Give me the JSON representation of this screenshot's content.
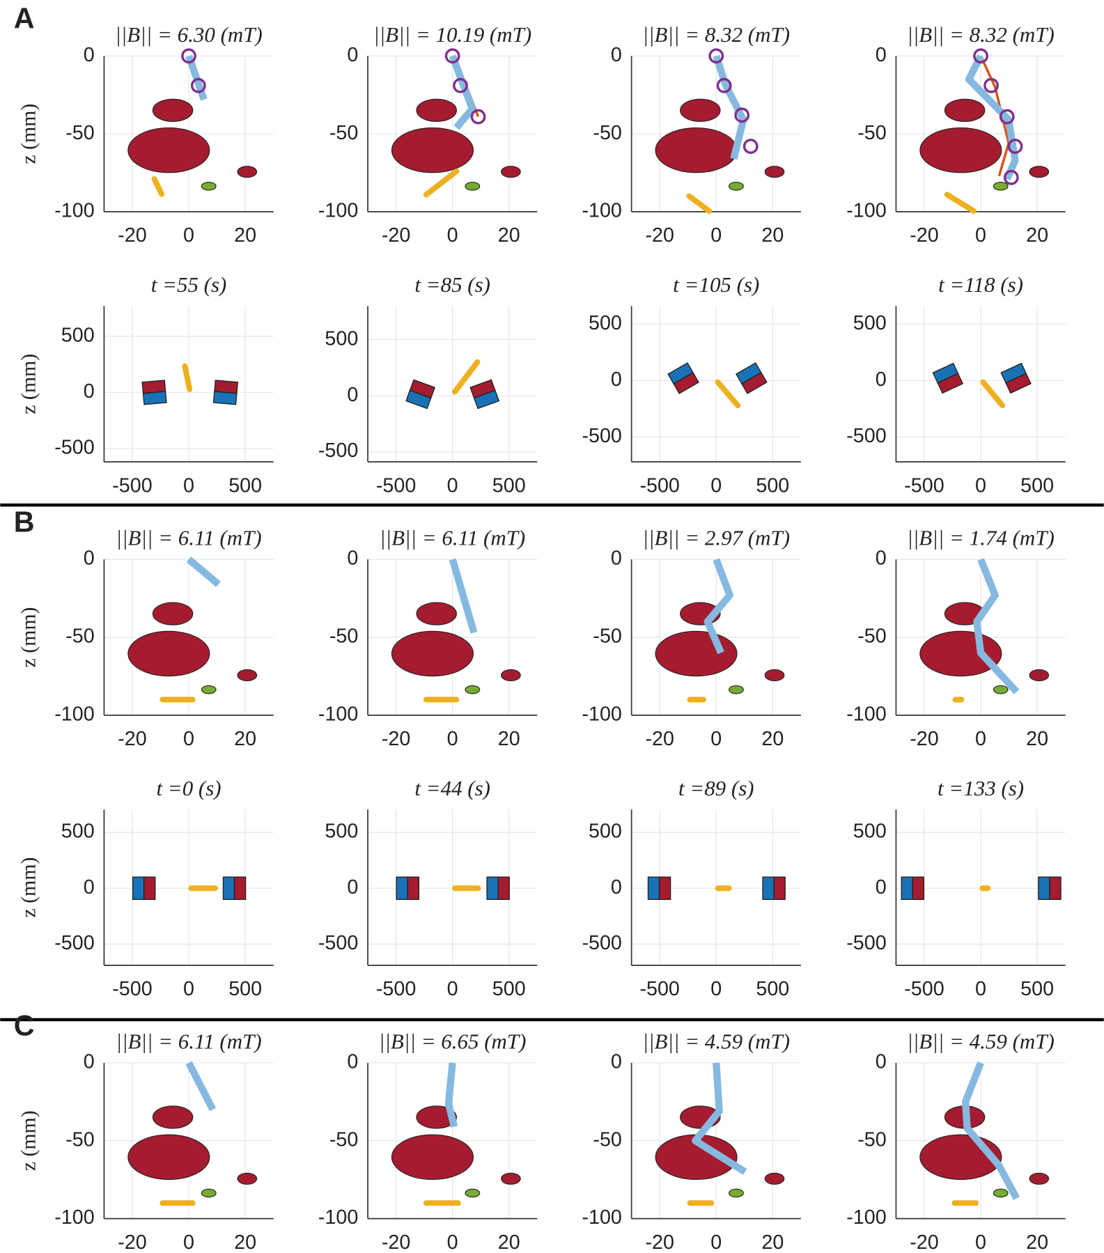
{
  "style": {
    "tentacle": "#86b9e0",
    "reference": "#d95319",
    "markers": "#7e2f8e",
    "rod": "#edb120",
    "north": "#a51c30",
    "south": "#1a72b6",
    "grid": "#e4e4e4"
  },
  "panels": [
    {
      "label": "A",
      "plots": [
        {
          "type": "body",
          "title": "||B|| = 6.30 (mT)",
          "ylabel": "z (mm)",
          "xlim": [
            -30,
            30
          ],
          "ylim": [
            -100,
            0
          ],
          "xticks": [
            -20,
            0,
            20
          ],
          "yticks": [
            -100,
            -50,
            0
          ],
          "tentacle": {
            "x": [
              0,
              5.4
            ],
            "z": [
              0,
              -28
            ]
          },
          "markers": {
            "x": [
              0,
              3.4
            ],
            "z": [
              0,
              -19
            ]
          },
          "rod": {
            "x": [
              -12.2,
              -9.6
            ],
            "z": [
              -79,
              -88.7
            ]
          }
        },
        {
          "type": "body",
          "title": "||B|| = 10.19 (mT)",
          "xlim": [
            -30,
            30
          ],
          "ylim": [
            -100,
            0
          ],
          "xticks": [
            -20,
            0,
            20
          ],
          "yticks": [
            -100,
            -50,
            0
          ],
          "reference": {
            "x": [
              0,
              4.2,
              9.1
            ],
            "z": [
              0,
              -16,
              -39
            ]
          },
          "tentacle": {
            "x": [
              0,
              7,
              1.4
            ],
            "z": [
              0,
              -34,
              -46
            ]
          },
          "markers": {
            "x": [
              0,
              2.8,
              9.1
            ],
            "z": [
              0,
              -19,
              -39
            ]
          },
          "rod": {
            "x": [
              -9.3,
              1.4
            ],
            "z": [
              -89,
              -74
            ]
          }
        },
        {
          "type": "body",
          "title": "||B|| = 8.32 (mT)",
          "xlim": [
            -30,
            30
          ],
          "ylim": [
            -100,
            0
          ],
          "xticks": [
            -20,
            0,
            20
          ],
          "yticks": [
            -100,
            -50,
            0
          ],
          "tentacle": {
            "x": [
              0,
              3.4,
              9.6,
              6.2
            ],
            "z": [
              0,
              -19,
              -41,
              -66
            ]
          },
          "markers": {
            "x": [
              0,
              2.8,
              9.1,
              12.2
            ],
            "z": [
              0,
              -19,
              -38,
              -58
            ]
          },
          "rod": {
            "x": [
              -9.6,
              -2.5
            ],
            "z": [
              -90,
              -99.5
            ]
          }
        },
        {
          "type": "body",
          "title": "||B|| = 8.32 (mT)",
          "xlim": [
            -30,
            30
          ],
          "ylim": [
            -100,
            0
          ],
          "xticks": [
            -20,
            0,
            20
          ],
          "yticks": [
            -100,
            -50,
            0
          ],
          "reference": {
            "x": [
              0,
              5.1,
              9.9,
              6.5
            ],
            "z": [
              0,
              -20,
              -56,
              -77
            ]
          },
          "tentacle": {
            "x": [
              0,
              -4.2,
              9.9,
              12.2,
              9.3
            ],
            "z": [
              0,
              -15,
              -41,
              -67,
              -79
            ]
          },
          "markers": {
            "x": [
              0,
              3.7,
              9.3,
              12.2,
              10.8
            ],
            "z": [
              0,
              -19,
              -39,
              -58,
              -78
            ]
          },
          "rod": {
            "x": [
              -11.9,
              -2.5
            ],
            "z": [
              -89,
              -99.5
            ]
          }
        },
        {
          "type": "magnets",
          "title": "t =55 (s)",
          "ylabel": "z (mm)",
          "xlim": [
            -750,
            750
          ],
          "ylim": [
            -620,
            770
          ],
          "xticks": [
            -500,
            0,
            500
          ],
          "yticks": [
            -500,
            0,
            500
          ],
          "magnets": [
            {
              "x": -305,
              "z": 0,
              "angle": 95
            },
            {
              "x": 326,
              "z": 0,
              "angle": 85
            }
          ],
          "rod": {
            "x": [
              -35,
              7
            ],
            "z": [
              234,
              28
            ]
          }
        },
        {
          "type": "magnets",
          "title": "t =85 (s)",
          "xlim": [
            -750,
            750
          ],
          "ylim": [
            -590,
            800
          ],
          "xticks": [
            -500,
            0,
            500
          ],
          "yticks": [
            -500,
            0,
            500
          ],
          "magnets": [
            {
              "x": -284,
              "z": 14,
              "angle": 70
            },
            {
              "x": 284,
              "z": 14,
              "angle": 110
            }
          ],
          "rod": {
            "x": [
              21,
              220
            ],
            "z": [
              36,
              300
            ]
          }
        },
        {
          "type": "magnets",
          "title": "t =105 (s)",
          "xlim": [
            -750,
            750
          ],
          "ylim": [
            -720,
            660
          ],
          "xticks": [
            -500,
            0,
            500
          ],
          "yticks": [
            -500,
            0,
            500
          ],
          "magnets": [
            {
              "x": -291,
              "z": 21,
              "angle": -60
            },
            {
              "x": 312,
              "z": 21,
              "angle": -60
            }
          ],
          "rod": {
            "x": [
              14,
              191
            ],
            "z": [
              -14,
              -220
            ]
          }
        },
        {
          "type": "magnets",
          "title": "t =118 (s)",
          "xlim": [
            -750,
            750
          ],
          "ylim": [
            -720,
            660
          ],
          "xticks": [
            -500,
            0,
            500
          ],
          "yticks": [
            -500,
            0,
            500
          ],
          "magnets": [
            {
              "x": -291,
              "z": 21,
              "angle": -65
            },
            {
              "x": 312,
              "z": 21,
              "angle": -65
            }
          ],
          "rod": {
            "x": [
              21,
              191
            ],
            "z": [
              -14,
              -220
            ]
          }
        }
      ]
    },
    {
      "label": "B",
      "plots": [
        {
          "type": "body",
          "title": "||B|| = 6.11 (mT)",
          "ylabel": "z (mm)",
          "xlim": [
            -30,
            30
          ],
          "ylim": [
            -100,
            0
          ],
          "xticks": [
            -20,
            0,
            20
          ],
          "yticks": [
            -100,
            -50,
            0
          ],
          "tentacle": {
            "x": [
              0,
              10.5
            ],
            "z": [
              0,
              -16
            ]
          },
          "rod": {
            "x": [
              -9.3,
              1.4
            ],
            "z": [
              -90,
              -90
            ]
          }
        },
        {
          "type": "body",
          "title": "||B|| = 6.11 (mT)",
          "xlim": [
            -30,
            30
          ],
          "ylim": [
            -100,
            0
          ],
          "xticks": [
            -20,
            0,
            20
          ],
          "yticks": [
            -100,
            -50,
            0
          ],
          "tentacle": {
            "x": [
              0,
              7.6
            ],
            "z": [
              0,
              -47
            ]
          },
          "rod": {
            "x": [
              -9.3,
              1.4
            ],
            "z": [
              -90,
              -90
            ]
          }
        },
        {
          "type": "body",
          "title": "||B|| = 2.97 (mT)",
          "xlim": [
            -30,
            30
          ],
          "ylim": [
            -100,
            0
          ],
          "xticks": [
            -20,
            0,
            20
          ],
          "yticks": [
            -100,
            -50,
            0
          ],
          "tentacle": {
            "x": [
              0,
              4.8,
              -3.1,
              1.7
            ],
            "z": [
              0,
              -23,
              -40,
              -60
            ]
          },
          "rod": {
            "x": [
              -9.3,
              -4.5
            ],
            "z": [
              -90,
              -90
            ]
          }
        },
        {
          "type": "body",
          "title": "||B|| = 1.74 (mT)",
          "xlim": [
            -30,
            30
          ],
          "ylim": [
            -100,
            0
          ],
          "xticks": [
            -20,
            0,
            20
          ],
          "yticks": [
            -100,
            -50,
            0
          ],
          "tentacle": {
            "x": [
              0,
              5.1,
              -1.4,
              0,
              12.7
            ],
            "z": [
              0,
              -23,
              -40,
              -60,
              -85
            ]
          },
          "rod": {
            "x": [
              -9,
              -6.8
            ],
            "z": [
              -90,
              -90
            ]
          }
        },
        {
          "type": "magnets",
          "title": "t =0 (s)",
          "ylabel": "z (mm)",
          "xlim": [
            -750,
            750
          ],
          "ylim": [
            -690,
            705
          ],
          "xticks": [
            -500,
            0,
            500
          ],
          "yticks": [
            -500,
            0,
            500
          ],
          "magnets": [
            {
              "x": -397,
              "z": 0,
              "angle": 0
            },
            {
              "x": 404,
              "z": 0,
              "angle": 0
            }
          ],
          "rod": {
            "x": [
              21,
              234
            ],
            "z": [
              0,
              0
            ]
          }
        },
        {
          "type": "magnets",
          "title": "t =44 (s)",
          "xlim": [
            -750,
            750
          ],
          "ylim": [
            -690,
            705
          ],
          "xticks": [
            -500,
            0,
            500
          ],
          "yticks": [
            -500,
            0,
            500
          ],
          "magnets": [
            {
              "x": -397,
              "z": 0,
              "angle": 0
            },
            {
              "x": 404,
              "z": 0,
              "angle": 0
            }
          ],
          "rod": {
            "x": [
              21,
              227
            ],
            "z": [
              0,
              0
            ]
          }
        },
        {
          "type": "magnets",
          "title": "t =89 (s)",
          "xlim": [
            -750,
            750
          ],
          "ylim": [
            -690,
            705
          ],
          "xticks": [
            -500,
            0,
            500
          ],
          "yticks": [
            -500,
            0,
            500
          ],
          "magnets": [
            {
              "x": -504,
              "z": 0,
              "angle": 0
            },
            {
              "x": 511,
              "z": 0,
              "angle": 0
            }
          ],
          "rod": {
            "x": [
              14,
              113
            ],
            "z": [
              0,
              0
            ]
          }
        },
        {
          "type": "magnets",
          "title": "t =133 (s)",
          "xlim": [
            -750,
            750
          ],
          "ylim": [
            -690,
            705
          ],
          "xticks": [
            -500,
            0,
            500
          ],
          "yticks": [
            -500,
            0,
            500
          ],
          "magnets": [
            {
              "x": -603,
              "z": 0,
              "angle": 0
            },
            {
              "x": 610,
              "z": 0,
              "angle": 0
            }
          ],
          "rod": {
            "x": [
              14,
              64
            ],
            "z": [
              0,
              0
            ]
          }
        }
      ]
    },
    {
      "label": "C",
      "plots": [
        {
          "type": "body",
          "title": "||B|| = 6.11 (mT)",
          "ylabel": "z (mm)",
          "xlim": [
            -30,
            30
          ],
          "ylim": [
            -100,
            0
          ],
          "xticks": [
            -20,
            0,
            20
          ],
          "yticks": [
            -100,
            -50,
            0
          ],
          "tentacle": {
            "x": [
              0,
              8.5
            ],
            "z": [
              0,
              -30
            ]
          },
          "rod": {
            "x": [
              -9.3,
              1.4
            ],
            "z": [
              -90,
              -90
            ]
          }
        },
        {
          "type": "body",
          "title": "||B|| = 6.65 (mT)",
          "xlim": [
            -30,
            30
          ],
          "ylim": [
            -100,
            0
          ],
          "xticks": [
            -20,
            0,
            20
          ],
          "yticks": [
            -100,
            -50,
            0
          ],
          "tentacle": {
            "x": [
              0,
              -1.4,
              0.6
            ],
            "z": [
              0,
              -26,
              -41
            ]
          },
          "rod": {
            "x": [
              -9.3,
              2
            ],
            "z": [
              -90,
              -90
            ]
          }
        },
        {
          "type": "body",
          "title": "||B|| = 4.59 (mT)",
          "xlim": [
            -30,
            30
          ],
          "ylim": [
            -100,
            0
          ],
          "xticks": [
            -20,
            0,
            20
          ],
          "yticks": [
            -100,
            -50,
            0
          ],
          "tentacle": {
            "x": [
              0,
              1.1,
              -7.4,
              10.2
            ],
            "z": [
              0,
              -31,
              -50,
              -70
            ]
          },
          "rod": {
            "x": [
              -9.3,
              -1.7
            ],
            "z": [
              -90,
              -90
            ]
          }
        },
        {
          "type": "body",
          "title": "||B|| = 4.59 (mT)",
          "xlim": [
            -30,
            30
          ],
          "ylim": [
            -100,
            0
          ],
          "xticks": [
            -20,
            0,
            20
          ],
          "yticks": [
            -100,
            -50,
            0
          ],
          "tentacle": {
            "x": [
              0,
              -5.4,
              -4.8,
              6.5,
              12.7
            ],
            "z": [
              0,
              -25,
              -42,
              -66,
              -87
            ]
          },
          "rod": {
            "x": [
              -9.3,
              -1.7
            ],
            "z": [
              -90,
              -90
            ]
          }
        }
      ]
    }
  ]
}
